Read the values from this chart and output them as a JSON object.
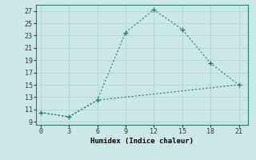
{
  "xlabel": "Humidex (Indice chaleur)",
  "line1_x": [
    0,
    3,
    6,
    9,
    12,
    15,
    18,
    21
  ],
  "line1_y": [
    10.5,
    9.8,
    12.5,
    23.5,
    27.2,
    24.0,
    18.5,
    15.0
  ],
  "line2_x": [
    0,
    3,
    6,
    21
  ],
  "line2_y": [
    10.5,
    9.8,
    12.5,
    15.0
  ],
  "line_color": "#2a7a6b",
  "bg_color": "#cce8e4",
  "grid_color": "#b0d4d0",
  "xlim": [
    -0.5,
    22
  ],
  "ylim": [
    8.5,
    28
  ],
  "xticks": [
    0,
    3,
    6,
    9,
    12,
    15,
    18,
    21
  ],
  "yticks": [
    9,
    11,
    13,
    15,
    17,
    19,
    21,
    23,
    25,
    27
  ]
}
